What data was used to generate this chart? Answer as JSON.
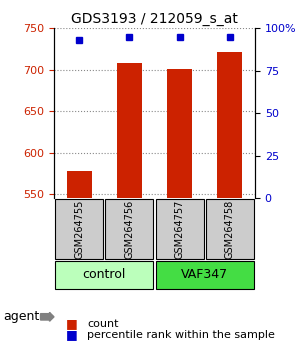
{
  "title": "GDS3193 / 212059_s_at",
  "samples": [
    "GSM264755",
    "GSM264756",
    "GSM264757",
    "GSM264758"
  ],
  "count_values": [
    578,
    708,
    701,
    722
  ],
  "percentile_values": [
    93,
    95,
    95,
    95
  ],
  "ylim_left": [
    545,
    750
  ],
  "ylim_right": [
    0,
    100
  ],
  "yticks_left": [
    550,
    600,
    650,
    700,
    750
  ],
  "yticks_right": [
    0,
    25,
    50,
    75,
    100
  ],
  "yticklabels_right": [
    "0",
    "25",
    "50",
    "75",
    "100%"
  ],
  "bar_color": "#cc2200",
  "dot_color": "#0000cc",
  "groups": [
    {
      "label": "control",
      "samples": [
        0,
        1
      ],
      "color": "#bbffbb"
    },
    {
      "label": "VAF347",
      "samples": [
        2,
        3
      ],
      "color": "#44dd44"
    }
  ],
  "group_box_color": "#cccccc",
  "agent_label": "agent",
  "legend_count_label": "count",
  "legend_pct_label": "percentile rank within the sample",
  "grid_color": "#888888",
  "bar_width": 0.5
}
